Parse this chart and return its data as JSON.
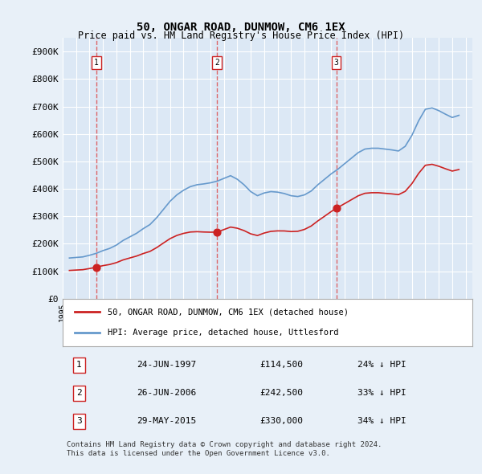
{
  "title": "50, ONGAR ROAD, DUNMOW, CM6 1EX",
  "subtitle": "Price paid vs. HM Land Registry's House Price Index (HPI)",
  "ylabel": "",
  "ylim": [
    0,
    950000
  ],
  "yticks": [
    0,
    100000,
    200000,
    300000,
    400000,
    500000,
    600000,
    700000,
    800000,
    900000
  ],
  "ytick_labels": [
    "£0",
    "£100K",
    "£200K",
    "£300K",
    "£400K",
    "£500K",
    "£600K",
    "£700K",
    "£800K",
    "£900K"
  ],
  "background_color": "#e8f0f8",
  "plot_bg_color": "#dce8f5",
  "grid_color": "#ffffff",
  "hpi_line_color": "#6699cc",
  "price_line_color": "#cc2222",
  "sale_marker_color": "#cc2222",
  "dashed_line_color": "#dd4444",
  "legend_box_color": "#ffffff",
  "transaction_label_bg": "#ffffff",
  "transaction_label_border": "#cc2222",
  "sale1_date": "24-JUN-1997",
  "sale1_price": 114500,
  "sale1_label": "1",
  "sale2_date": "26-JUN-2006",
  "sale2_price": 242500,
  "sale2_label": "2",
  "sale3_date": "29-MAY-2015",
  "sale3_price": 330000,
  "sale3_label": "3",
  "footer_text": "Contains HM Land Registry data © Crown copyright and database right 2024.\nThis data is licensed under the Open Government Licence v3.0.",
  "legend_line1": "50, ONGAR ROAD, DUNMOW, CM6 1EX (detached house)",
  "legend_line2": "HPI: Average price, detached house, Uttlesford",
  "table_row1": "1    24-JUN-1997    £114,500    24% ↓ HPI",
  "table_row2": "2    26-JUN-2006    £242,500    33% ↓ HPI",
  "table_row3": "3    29-MAY-2015    £330,000    34% ↓ HPI",
  "xmin": 1995.0,
  "xmax": 2025.5
}
